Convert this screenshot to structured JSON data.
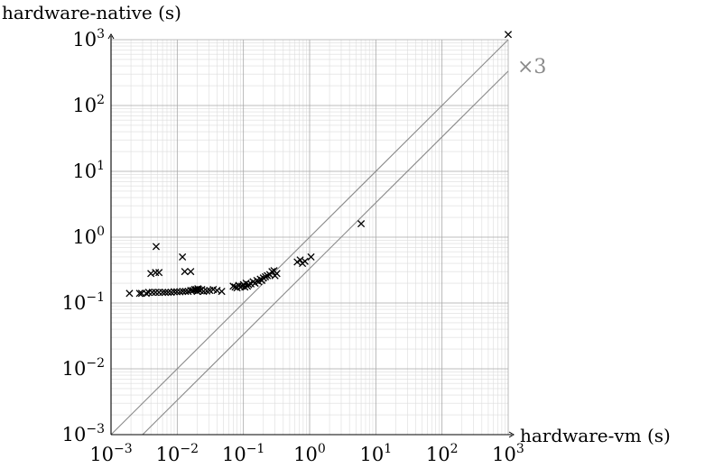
{
  "chart_data": {
    "type": "scatter",
    "xlabel": "hardware-vm (s)",
    "ylabel": "hardware-native (s)",
    "xscale": "log",
    "yscale": "log",
    "xlim": [
      0.001,
      1000
    ],
    "ylim": [
      0.001,
      1000
    ],
    "grid": true,
    "tick_base": "10",
    "x_tick_exponents": [
      "−3",
      "−2",
      "−1",
      "0",
      "1",
      "2",
      "3"
    ],
    "y_tick_exponents": [
      "−3",
      "−2",
      "−1",
      "0",
      "1",
      "2",
      "3"
    ],
    "reference_lines": [
      {
        "label": "",
        "slope": 1
      },
      {
        "label": "×3",
        "slope": 0.3333
      }
    ],
    "marker": "x",
    "marker_color": "#000000",
    "reference_color": "#8a8a8a",
    "points": [
      [
        0.0019,
        0.14
      ],
      [
        0.0027,
        0.14
      ],
      [
        0.0029,
        0.14
      ],
      [
        0.0034,
        0.14
      ],
      [
        0.0037,
        0.145
      ],
      [
        0.0042,
        0.145
      ],
      [
        0.0047,
        0.145
      ],
      [
        0.0053,
        0.145
      ],
      [
        0.006,
        0.145
      ],
      [
        0.0066,
        0.145
      ],
      [
        0.0073,
        0.145
      ],
      [
        0.0081,
        0.145
      ],
      [
        0.009,
        0.148
      ],
      [
        0.0099,
        0.148
      ],
      [
        0.011,
        0.148
      ],
      [
        0.0121,
        0.15
      ],
      [
        0.0133,
        0.15
      ],
      [
        0.0146,
        0.15
      ],
      [
        0.016,
        0.155
      ],
      [
        0.0172,
        0.155
      ],
      [
        0.0183,
        0.16
      ],
      [
        0.0193,
        0.16
      ],
      [
        0.02,
        0.15
      ],
      [
        0.0205,
        0.165
      ],
      [
        0.021,
        0.16
      ],
      [
        0.022,
        0.155
      ],
      [
        0.0235,
        0.16
      ],
      [
        0.025,
        0.15
      ],
      [
        0.028,
        0.152
      ],
      [
        0.031,
        0.155
      ],
      [
        0.035,
        0.16
      ],
      [
        0.04,
        0.155
      ],
      [
        0.047,
        0.15
      ],
      [
        0.004,
        0.28
      ],
      [
        0.0047,
        0.29
      ],
      [
        0.0053,
        0.29
      ],
      [
        0.0048,
        0.72
      ],
      [
        0.012,
        0.5
      ],
      [
        0.013,
        0.3
      ],
      [
        0.016,
        0.3
      ],
      [
        0.07,
        0.18
      ],
      [
        0.075,
        0.175
      ],
      [
        0.08,
        0.17
      ],
      [
        0.085,
        0.185
      ],
      [
        0.09,
        0.175
      ],
      [
        0.095,
        0.18
      ],
      [
        0.1,
        0.19
      ],
      [
        0.105,
        0.175
      ],
      [
        0.11,
        0.2
      ],
      [
        0.115,
        0.18
      ],
      [
        0.12,
        0.19
      ],
      [
        0.13,
        0.195
      ],
      [
        0.14,
        0.21
      ],
      [
        0.15,
        0.2
      ],
      [
        0.16,
        0.22
      ],
      [
        0.17,
        0.21
      ],
      [
        0.18,
        0.23
      ],
      [
        0.19,
        0.22
      ],
      [
        0.2,
        0.24
      ],
      [
        0.215,
        0.25
      ],
      [
        0.23,
        0.26
      ],
      [
        0.25,
        0.27
      ],
      [
        0.27,
        0.3
      ],
      [
        0.29,
        0.31
      ],
      [
        0.3,
        0.26
      ],
      [
        0.32,
        0.28
      ],
      [
        0.65,
        0.42
      ],
      [
        0.72,
        0.45
      ],
      [
        0.78,
        0.4
      ],
      [
        0.85,
        0.43
      ],
      [
        1.05,
        0.5
      ],
      [
        6.0,
        1.6
      ],
      [
        1000,
        1200
      ]
    ]
  }
}
